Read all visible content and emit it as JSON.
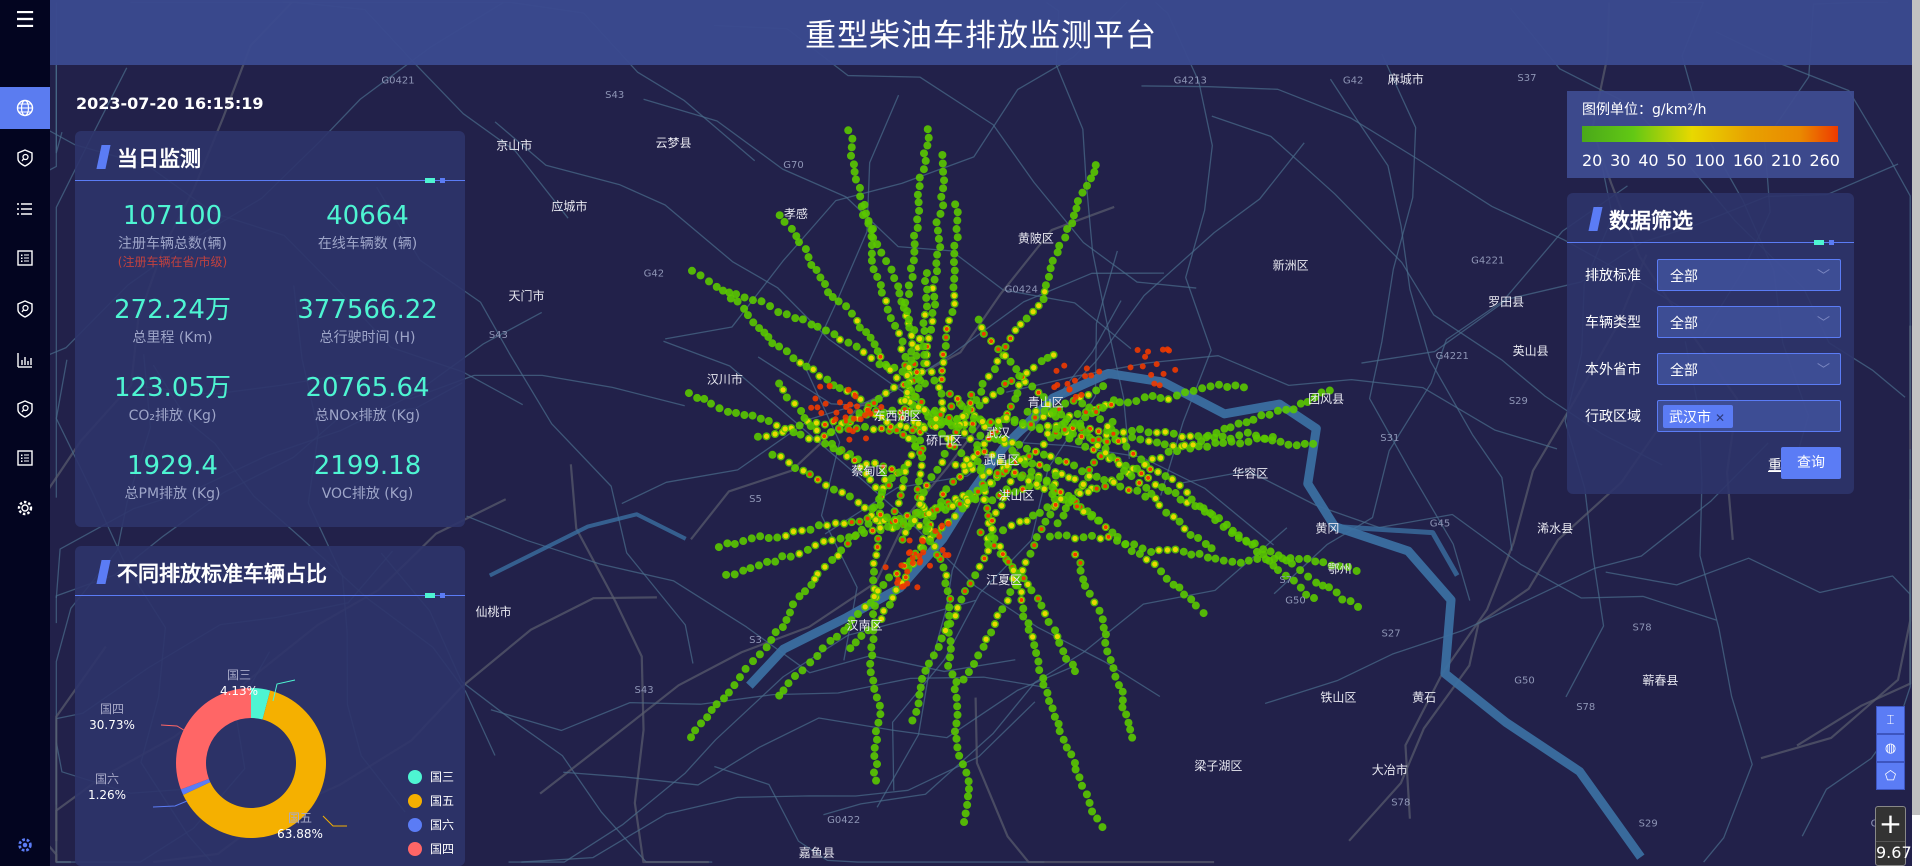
{
  "header": {
    "title": "重型柴油车排放监测平台"
  },
  "datetime": "2023-07-20 16:15:19",
  "sidebar": {
    "menu_icon": "menu-icon",
    "items": [
      {
        "icon": "globe-icon",
        "active": true
      },
      {
        "icon": "shield-search-icon"
      },
      {
        "icon": "list-icon"
      },
      {
        "icon": "document-list-icon"
      },
      {
        "icon": "shield-search-icon"
      },
      {
        "icon": "bar-chart-icon"
      },
      {
        "icon": "shield-search-icon"
      },
      {
        "icon": "document-list-icon"
      },
      {
        "icon": "gear-icon"
      }
    ],
    "bottom_icon": "settings-icon"
  },
  "daily": {
    "title": "当日监测",
    "stats": [
      {
        "value": "107100",
        "label": "注册车辆总数(辆)",
        "note": "(注册车辆在省/市级)"
      },
      {
        "value": "40664",
        "label": "在线车辆数 (辆)"
      },
      {
        "value": "272.24万",
        "label": "总里程 (Km)"
      },
      {
        "value": "377566.22",
        "label": "总行驶时间 (H)"
      },
      {
        "value": "123.05万",
        "label": "CO₂排放 (Kg)"
      },
      {
        "value": "20765.64",
        "label": "总NOx排放 (Kg)"
      },
      {
        "value": "1929.4",
        "label": "总PM排放 (Kg)"
      },
      {
        "value": "2199.18",
        "label": "VOC排放 (Kg)"
      }
    ]
  },
  "ratio": {
    "title": "不同排放标准车辆占比"
  },
  "chart_data": {
    "type": "pie",
    "donut": true,
    "categories": [
      "国三",
      "国五",
      "国六",
      "国四"
    ],
    "values": [
      4.13,
      63.88,
      1.26,
      30.73
    ],
    "labels": [
      "4.13%",
      "63.88%",
      "1.26%",
      "30.73%"
    ],
    "colors": [
      "#4ef5d2",
      "#f5b000",
      "#5b7cf5",
      "#ff6666"
    ],
    "legend": "bottom-right"
  },
  "legend": {
    "title": "图例单位：g/km²/h",
    "ticks": [
      "20",
      "30",
      "40",
      "50",
      "100",
      "160",
      "210",
      "260"
    ]
  },
  "filter": {
    "title": "数据筛选",
    "fields": [
      {
        "label": "排放标准",
        "value": "全部"
      },
      {
        "label": "车辆类型",
        "value": "全部"
      },
      {
        "label": "本外省市",
        "value": "全部"
      },
      {
        "label": "行政区域",
        "tag": "武汉市"
      }
    ],
    "reset": "重置",
    "query": "查询"
  },
  "map": {
    "labels": [
      "云梦县",
      "应城市",
      "孝感",
      "京山市",
      "汉川市",
      "黄陂区",
      "新洲区",
      "东西湖区",
      "硚口区",
      "武汉",
      "青山区",
      "武昌区",
      "洪山区",
      "蔡甸区",
      "汉南区",
      "江夏区",
      "团风县",
      "华容区",
      "黄冈",
      "鄂州",
      "浠水县",
      "仙桃市",
      "铁山区",
      "黄石",
      "蕲春县",
      "梁子湖区",
      "大冶市",
      "嘉鱼县",
      "麻城市",
      "罗田县",
      "英山县",
      "天门市"
    ],
    "road_labels": [
      "G0421",
      "S43",
      "G70",
      "G42",
      "G0424",
      "G4213",
      "G42",
      "S37",
      "S43",
      "G4221",
      "G4221",
      "S29",
      "S31",
      "G45",
      "S7",
      "G50",
      "S27",
      "S78",
      "G50",
      "S78",
      "S29",
      "G50",
      "S78",
      "S3",
      "S43",
      "G0422",
      "S74",
      "S5"
    ],
    "controls": {
      "icons": [
        "fit-height-icon",
        "globe-icon",
        "polygon-icon"
      ],
      "zoom_in": "+",
      "zoom_level": "9.67"
    }
  }
}
